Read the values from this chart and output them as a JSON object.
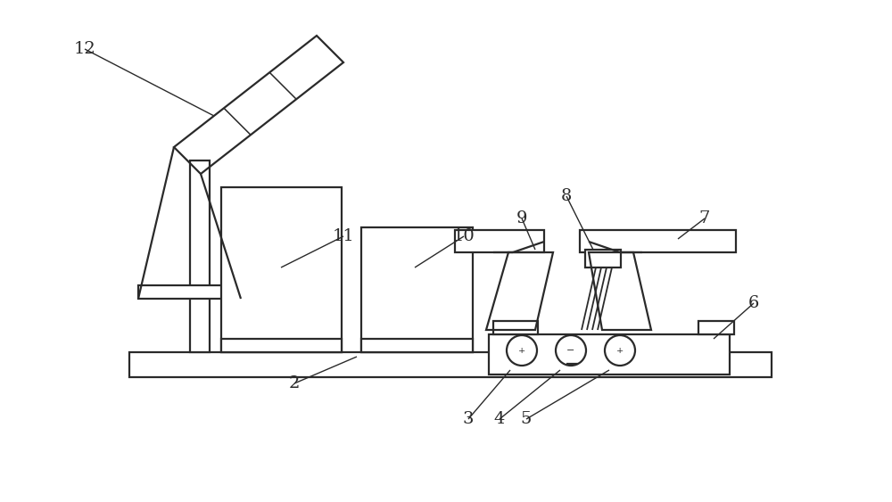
{
  "bg_color": "#ffffff",
  "line_color": "#2a2a2a",
  "lw": 1.6,
  "fig_w": 10.0,
  "fig_h": 5.63
}
